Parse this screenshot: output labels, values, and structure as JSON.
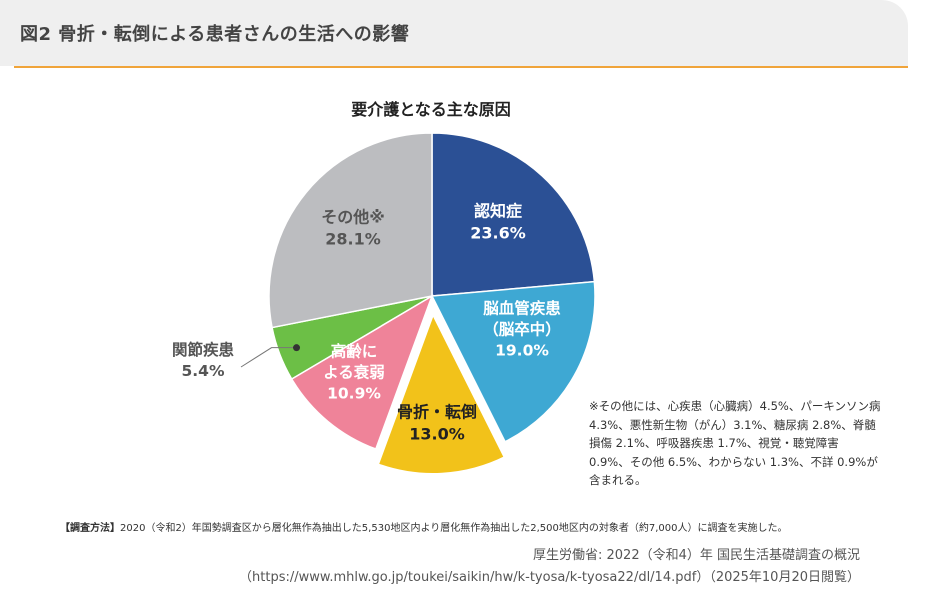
{
  "figure_title": "図2 骨折・転倒による患者さんの生活への影響",
  "colors": {
    "accent_line": "#f0a43a",
    "header_bg": "#efefef"
  },
  "chart_data": {
    "type": "pie",
    "title": "要介護となる主な原因",
    "unit": "%",
    "slices": [
      {
        "label": "認知症",
        "value": 23.6,
        "value_text": "23.6%",
        "color": "#2b5095"
      },
      {
        "label": "脳血管疾患\n（脳卒中）",
        "value": 19.0,
        "value_text": "19.0%",
        "color": "#3ea8d3"
      },
      {
        "label": "骨折・転倒",
        "value": 13.0,
        "value_text": "13.0%",
        "color": "#f2c21a",
        "exploded": true
      },
      {
        "label": "高齢に\nよる衰弱",
        "value": 10.9,
        "value_text": "10.9%",
        "color": "#ef8399"
      },
      {
        "label": "関節疾患",
        "value": 5.4,
        "value_text": "5.4%",
        "color": "#6cbf46"
      },
      {
        "label": "その他※",
        "value": 28.1,
        "value_text": "28.1%",
        "color": "#bcbdc0"
      }
    ]
  },
  "note": "※その他には、心疾患（心臓病）4.5%、パーキンソン病 4.3%、悪性新生物（がん）3.1%、糖尿病 2.8%、脊髄損傷 2.1%、呼吸器疾患 1.7%、視覚・聴覚障害 0.9%、その他 6.5%、わからない 1.3%、不詳 0.9%が含まれる。",
  "survey": {
    "label": "【調査方法】",
    "text": "2020（令和2）年国勢調査区から層化無作為抽出した5,530地区内より層化無作為抽出した2,500地区内の対象者（約7,000人）に調査を実施した。"
  },
  "source": {
    "line1": "厚生労働省: 2022（令和4）年 国民生活基礎調査の概況",
    "line2": "（https://www.mhlw.go.jp/toukei/saikin/hw/k-tyosa/k-tyosa22/dl/14.pdf）（2025年10月20日閲覧）"
  }
}
